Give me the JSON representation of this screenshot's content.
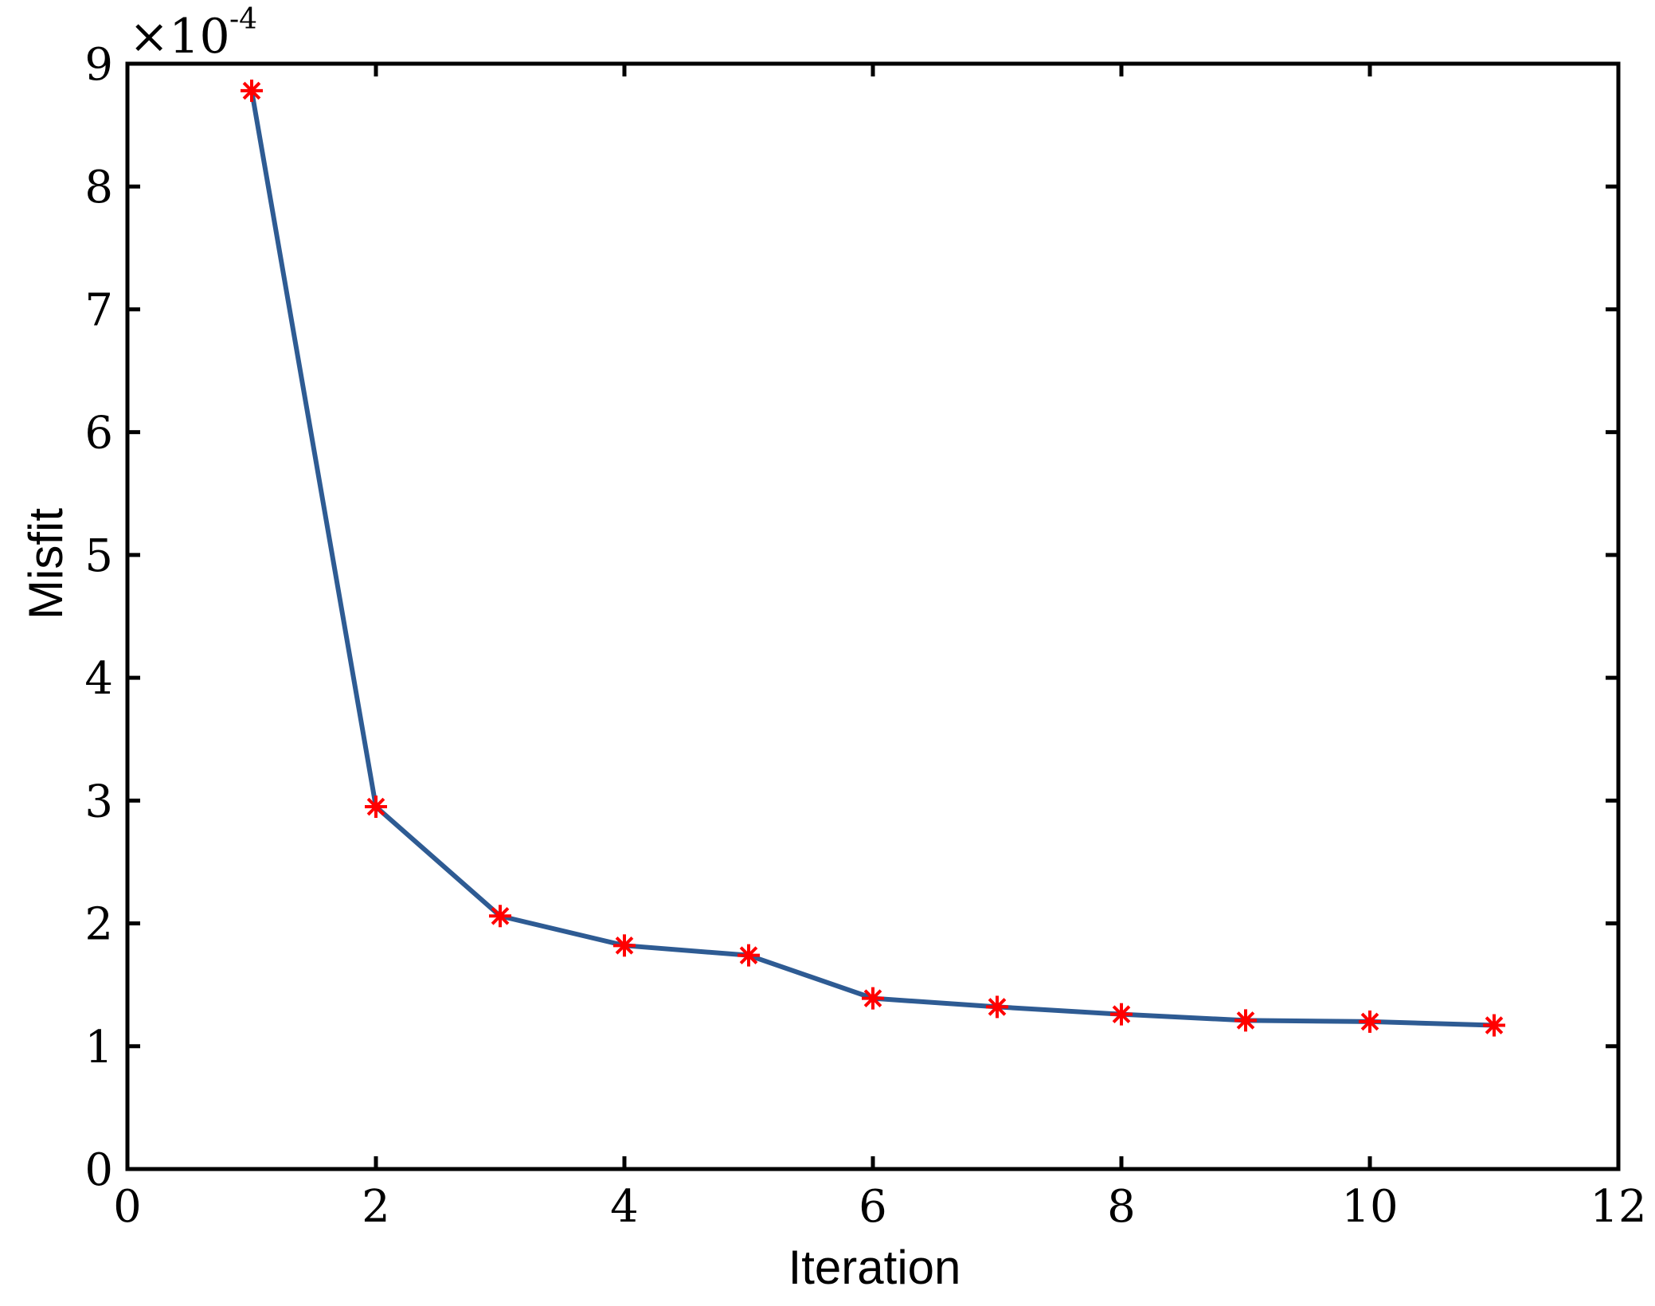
{
  "chart_data": {
    "type": "line",
    "xlabel": "Iteration",
    "ylabel": "Misfit",
    "scale_note": {
      "base": "×10",
      "exponent": "-4"
    },
    "xlim": [
      0,
      12
    ],
    "ylim": [
      0,
      9
    ],
    "x_ticks": [
      0,
      2,
      4,
      6,
      8,
      10,
      12
    ],
    "y_ticks": [
      0,
      1,
      2,
      3,
      4,
      5,
      6,
      7,
      8,
      9
    ],
    "grid": false,
    "series": [
      {
        "x": [
          1,
          2,
          3,
          4,
          5,
          6,
          7,
          8,
          9,
          10,
          11
        ],
        "values": [
          8.78,
          2.95,
          2.06,
          1.82,
          1.74,
          1.39,
          1.32,
          1.26,
          1.21,
          1.2,
          1.17
        ],
        "line_color": "#2e5b93",
        "marker": "asterisk",
        "marker_color": "#ff0000"
      }
    ]
  }
}
